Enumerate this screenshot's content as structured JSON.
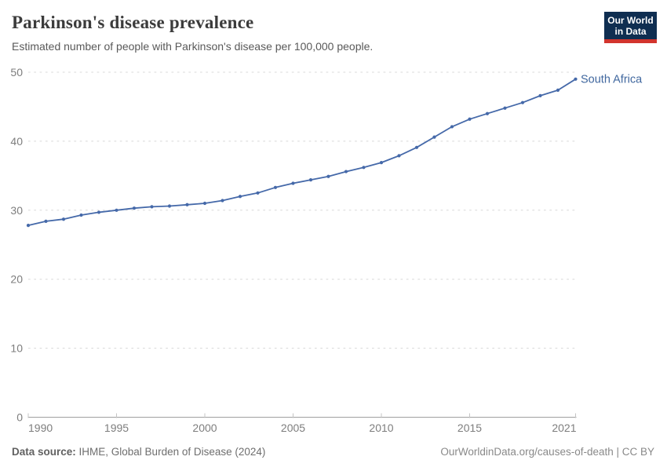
{
  "header": {
    "title": "Parkinson's disease prevalence",
    "subtitle": "Estimated number of people with Parkinson's disease per 100,000 people."
  },
  "logo": {
    "line1": "Our World",
    "line2": "in Data"
  },
  "chart_data": {
    "type": "line",
    "title": "Parkinson's disease prevalence",
    "x": [
      1990,
      1991,
      1992,
      1993,
      1994,
      1995,
      1996,
      1997,
      1998,
      1999,
      2000,
      2001,
      2002,
      2003,
      2004,
      2005,
      2006,
      2007,
      2008,
      2009,
      2010,
      2011,
      2012,
      2013,
      2014,
      2015,
      2016,
      2017,
      2018,
      2019,
      2020,
      2021
    ],
    "series": [
      {
        "name": "South Africa",
        "values": [
          27.8,
          28.4,
          28.7,
          29.3,
          29.7,
          30.0,
          30.3,
          30.5,
          30.6,
          30.8,
          31.0,
          31.4,
          32.0,
          32.5,
          33.3,
          33.9,
          34.4,
          34.9,
          35.6,
          36.2,
          36.9,
          37.9,
          39.1,
          40.6,
          42.1,
          43.2,
          44.0,
          44.8,
          45.6,
          46.6,
          47.4,
          49.0
        ]
      }
    ],
    "end_label": "South Africa",
    "xlabel": "",
    "ylabel": "",
    "ylim": [
      0,
      50
    ],
    "yticks": [
      0,
      10,
      20,
      30,
      40,
      50
    ],
    "xtick_labels": [
      "1990",
      "1995",
      "2000",
      "2005",
      "2010",
      "2015",
      "2021"
    ],
    "xtick_years": [
      1990,
      1995,
      2000,
      2005,
      2010,
      2015,
      2021
    ],
    "grid": "horizontal-dashed",
    "legend_position": "end-of-line"
  },
  "footer": {
    "source_label": "Data source:",
    "source_text": " IHME, Global Burden of Disease (2024)",
    "credit": "OurWorldinData.org/causes-of-death | CC BY"
  },
  "colors": {
    "accent_line": "#4569a9",
    "end_label_text": "#41689f",
    "grid": "#d8d8d8",
    "axis": "#a0a0a0",
    "tick_mark": "#c4c4c4",
    "tick_text": "#7e7e7e",
    "logo_bg": "#0f2e51",
    "logo_bar": "#d2342d"
  }
}
